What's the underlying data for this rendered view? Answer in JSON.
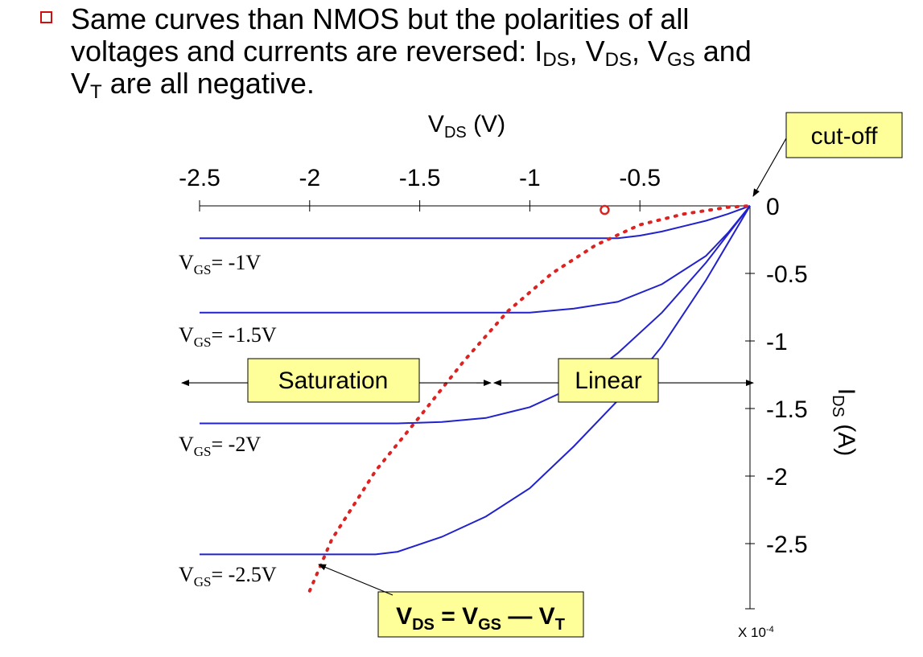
{
  "bullet": {
    "line1": "Same curves than NMOS but the polarities of all",
    "line2_a": "voltages and currents are reversed: I",
    "line2_sub1": "DS",
    "line2_b": ", V",
    "line2_sub2": "DS",
    "line2_c": ", V",
    "line2_sub3": "GS",
    "line2_d": " and",
    "line3_a": "V",
    "line3_sub": "T",
    "line3_b": " are all negative."
  },
  "chart_data": {
    "type": "line",
    "x_label_main": "V",
    "x_label_sub": "DS",
    "x_label_unit": " (V)",
    "y_label_main": "I",
    "y_label_sub": "DS",
    "y_label_unit": " (A)",
    "x_ticks": [
      -2.5,
      -2,
      -1.5,
      -1,
      -0.5
    ],
    "x_tick_labels": [
      "-2.5",
      "-2",
      "-1.5",
      "-1",
      "-0.5"
    ],
    "y_ticks": [
      0,
      -0.5,
      -1,
      -1.5,
      -2,
      -2.5
    ],
    "y_tick_labels": [
      "0",
      "-0.5",
      "-1",
      "-1.5",
      "-2",
      "-2.5"
    ],
    "y_multiplier": "X 10-4",
    "y_multiplier_base": "X 10",
    "y_multiplier_exp": "-4",
    "xlim": [
      -2.5,
      0
    ],
    "ylim": [
      -2.95,
      0
    ],
    "series": [
      {
        "label_main": "V",
        "label_sub": "GS",
        "label_value": "= -1V",
        "points": [
          [
            -2.5,
            -0.24
          ],
          [
            -1.0,
            -0.24
          ],
          [
            -0.6,
            -0.24
          ],
          [
            -0.5,
            -0.22
          ],
          [
            -0.4,
            -0.19
          ],
          [
            -0.3,
            -0.15
          ],
          [
            -0.2,
            -0.11
          ],
          [
            -0.1,
            -0.06
          ],
          [
            0,
            0
          ]
        ]
      },
      {
        "label_main": "V",
        "label_sub": "GS",
        "label_value": "= -1.5V",
        "points": [
          [
            -2.5,
            -0.79
          ],
          [
            -1.4,
            -0.79
          ],
          [
            -1.0,
            -0.79
          ],
          [
            -0.8,
            -0.76
          ],
          [
            -0.6,
            -0.71
          ],
          [
            -0.4,
            -0.58
          ],
          [
            -0.2,
            -0.37
          ],
          [
            -0.1,
            -0.2
          ],
          [
            0,
            0
          ]
        ]
      },
      {
        "label_main": "V",
        "label_sub": "GS",
        "label_value": "= -2V",
        "points": [
          [
            -2.5,
            -1.61
          ],
          [
            -1.6,
            -1.61
          ],
          [
            -1.4,
            -1.6
          ],
          [
            -1.2,
            -1.57
          ],
          [
            -1.0,
            -1.49
          ],
          [
            -0.8,
            -1.34
          ],
          [
            -0.6,
            -1.09
          ],
          [
            -0.4,
            -0.79
          ],
          [
            -0.2,
            -0.42
          ],
          [
            0,
            0
          ]
        ]
      },
      {
        "label_main": "V",
        "label_sub": "GS",
        "label_value": "= -2.5V",
        "points": [
          [
            -2.5,
            -2.58
          ],
          [
            -1.7,
            -2.58
          ],
          [
            -1.6,
            -2.56
          ],
          [
            -1.4,
            -2.45
          ],
          [
            -1.2,
            -2.3
          ],
          [
            -1.0,
            -2.09
          ],
          [
            -0.8,
            -1.78
          ],
          [
            -0.6,
            -1.44
          ],
          [
            -0.4,
            -1.04
          ],
          [
            -0.2,
            -0.55
          ],
          [
            0,
            0
          ]
        ]
      }
    ],
    "boundary": {
      "style": "dotted red",
      "points": [
        [
          -2.0,
          -2.85
        ],
        [
          -1.9,
          -2.47
        ],
        [
          -1.7,
          -1.96
        ],
        [
          -1.5,
          -1.56
        ],
        [
          -1.3,
          -1.15
        ],
        [
          -1.1,
          -0.78
        ],
        [
          -0.9,
          -0.5
        ],
        [
          -0.7,
          -0.29
        ],
        [
          -0.5,
          -0.14
        ],
        [
          -0.3,
          -0.06
        ],
        [
          -0.1,
          -0.01
        ],
        [
          0,
          0
        ]
      ]
    },
    "highlight_point": [
      -0.66,
      -0.03
    ],
    "region_arrow_y": -1.31,
    "region_divider_x": -1.17,
    "annotations": {
      "saturation": "Saturation",
      "linear": "Linear",
      "cutoff": "cut-off",
      "formula_a": "V",
      "formula_sub1": "DS",
      "formula_b": " = V",
      "formula_sub2": "GS",
      "formula_c": " — V",
      "formula_sub3": "T"
    },
    "colors": {
      "curves": "#2222cc",
      "boundary": "#dd2222",
      "box_fill": "#ffff99",
      "axes": "#000000"
    },
    "grid": false
  }
}
